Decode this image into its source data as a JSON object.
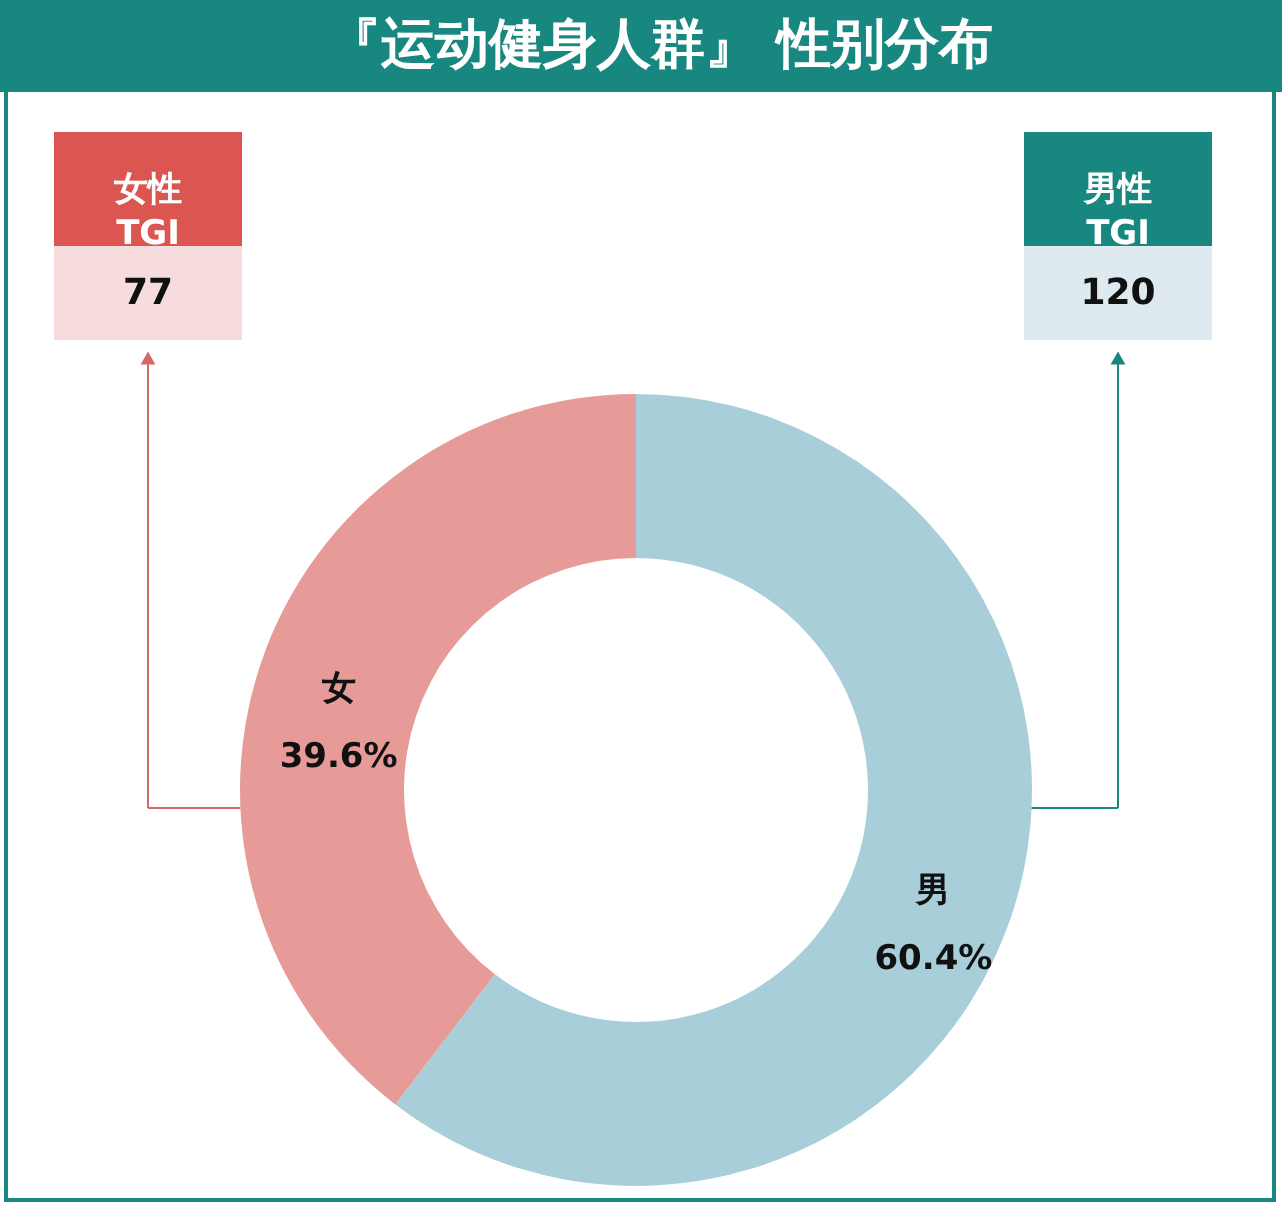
{
  "chart_data": {
    "type": "donut",
    "title": "『运动健身人群』 性别分布",
    "categories": [
      "男",
      "女"
    ],
    "values": [
      60.4,
      39.6
    ],
    "colors": [
      "#a8cfd9",
      "#e79b98"
    ],
    "value_labels": [
      "60.4%",
      "39.6%"
    ],
    "annotations": [
      "女性\nTGI",
      "77",
      "男性\nTGI",
      "120"
    ]
  }
}
